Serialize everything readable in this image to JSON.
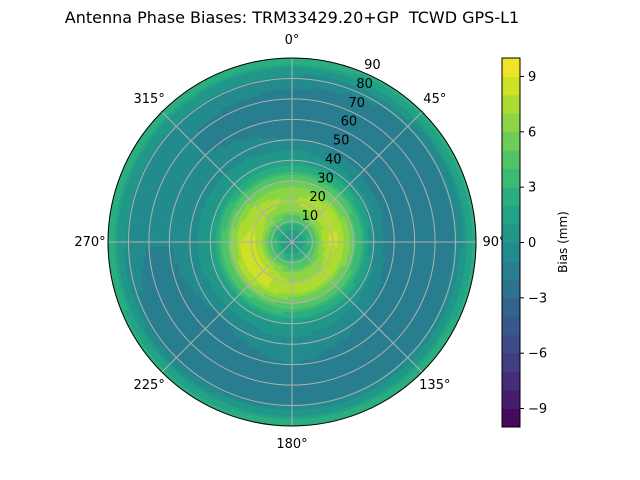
{
  "chart_data": {
    "type": "heatmap",
    "projection": "polar",
    "title": "Antenna Phase Biases: TRM33429.20+GP  TCWD GPS-L1",
    "theta_direction": "clockwise",
    "theta_zero": "north",
    "theta_tick_labels": [
      "0°",
      "45°",
      "90°",
      "135°",
      "180°",
      "225°",
      "270°",
      "315°"
    ],
    "theta_ticks": [
      0,
      45,
      90,
      135,
      180,
      225,
      270,
      315
    ],
    "radial_ticks": [
      10,
      20,
      30,
      40,
      50,
      60,
      70,
      80,
      90
    ],
    "radial_tick_labels": [
      "10",
      "20",
      "30",
      "40",
      "50",
      "60",
      "70",
      "80",
      "90"
    ],
    "radial_range": [
      0,
      90
    ],
    "grid": true,
    "colormap": "viridis",
    "colorbar": {
      "label": "Bias (mm)",
      "range": [
        -10,
        10
      ],
      "levels_step": 1,
      "ticks": [
        -9,
        -6,
        -3,
        0,
        3,
        6,
        9
      ],
      "tick_labels": [
        "−9",
        "−6",
        "−3",
        "0",
        "3",
        "6",
        "9"
      ],
      "placement": "right"
    },
    "grid_zenith": [
      0,
      5,
      10,
      15,
      20,
      25,
      30,
      35,
      40,
      50,
      60,
      70,
      80,
      85,
      90
    ],
    "grid_azimuth": [
      0,
      45,
      90,
      135,
      180,
      225,
      270,
      315
    ],
    "values": [
      [
        0,
        0,
        0,
        0,
        0,
        0,
        0,
        0
      ],
      [
        1.5,
        1.5,
        1.5,
        1.5,
        1.5,
        1.5,
        1.5,
        1.5
      ],
      [
        3.5,
        3.5,
        4,
        3.5,
        3.5,
        4,
        4,
        3.5
      ],
      [
        6,
        6.5,
        7,
        6,
        6,
        7,
        7.5,
        6.5
      ],
      [
        7,
        8,
        8.5,
        7,
        7,
        8.5,
        8.5,
        7.5
      ],
      [
        6.5,
        7,
        7.5,
        7,
        7,
        8.5,
        8,
        7
      ],
      [
        5,
        5,
        5,
        5,
        5,
        6,
        6,
        5
      ],
      [
        3,
        3,
        2.5,
        3,
        3,
        3.5,
        3.5,
        3
      ],
      [
        1,
        0.5,
        0,
        0.5,
        1,
        1,
        1,
        1
      ],
      [
        -1,
        -1.5,
        -2,
        -1,
        -0.5,
        -1,
        -0.5,
        -0.5
      ],
      [
        -1.5,
        -2,
        -2,
        -1.5,
        -1,
        -1.5,
        -1,
        -1
      ],
      [
        -1.5,
        -2,
        -2,
        -2,
        -1.5,
        -2,
        -1,
        -1
      ],
      [
        -0.5,
        -1,
        -1,
        -1,
        -1,
        -1.5,
        -0.5,
        -0.5
      ],
      [
        1,
        0.5,
        0.5,
        1,
        1,
        0.5,
        1,
        1
      ],
      [
        3,
        3,
        3,
        3,
        3,
        3,
        3,
        3
      ]
    ]
  }
}
